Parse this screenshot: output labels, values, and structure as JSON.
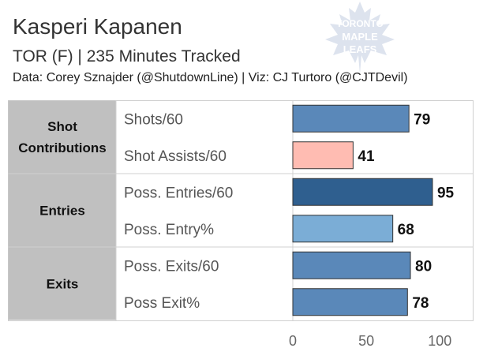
{
  "header": {
    "title": "Kasperi Kapanen",
    "subtitle": "TOR (F) | 235 Minutes Tracked",
    "credit": "Data: Corey Sznajder (@ShutdownLine) | Viz: CJ Turtoro (@CJTDevil)"
  },
  "logo": {
    "lines": [
      "TORONTO",
      "MAPLE",
      "LEAFS"
    ],
    "icon": "maple-leaf-icon",
    "color": "#dde3ee"
  },
  "chart_data": {
    "type": "bar",
    "orientation": "horizontal",
    "groups": [
      {
        "label": [
          "Shot",
          "Contributions"
        ],
        "metrics": [
          {
            "label": "Shots/60",
            "value": 79,
            "color": "#5a88b9"
          },
          {
            "label": "Shot Assists/60",
            "value": 41,
            "color": "#ffbcb2"
          }
        ]
      },
      {
        "label": [
          "Entries"
        ],
        "metrics": [
          {
            "label": "Poss. Entries/60",
            "value": 95,
            "color": "#2f5f8f"
          },
          {
            "label": "Poss. Entry%",
            "value": 68,
            "color": "#7badd6"
          }
        ]
      },
      {
        "label": [
          "Exits"
        ],
        "metrics": [
          {
            "label": "Poss. Exits/60",
            "value": 80,
            "color": "#5a88b9"
          },
          {
            "label": "Poss Exit%",
            "value": 78,
            "color": "#5a88b9"
          }
        ]
      }
    ],
    "xlim": [
      0,
      100
    ],
    "xticks": [
      0,
      50,
      100
    ],
    "group_header_color": "#c0c0c0"
  }
}
